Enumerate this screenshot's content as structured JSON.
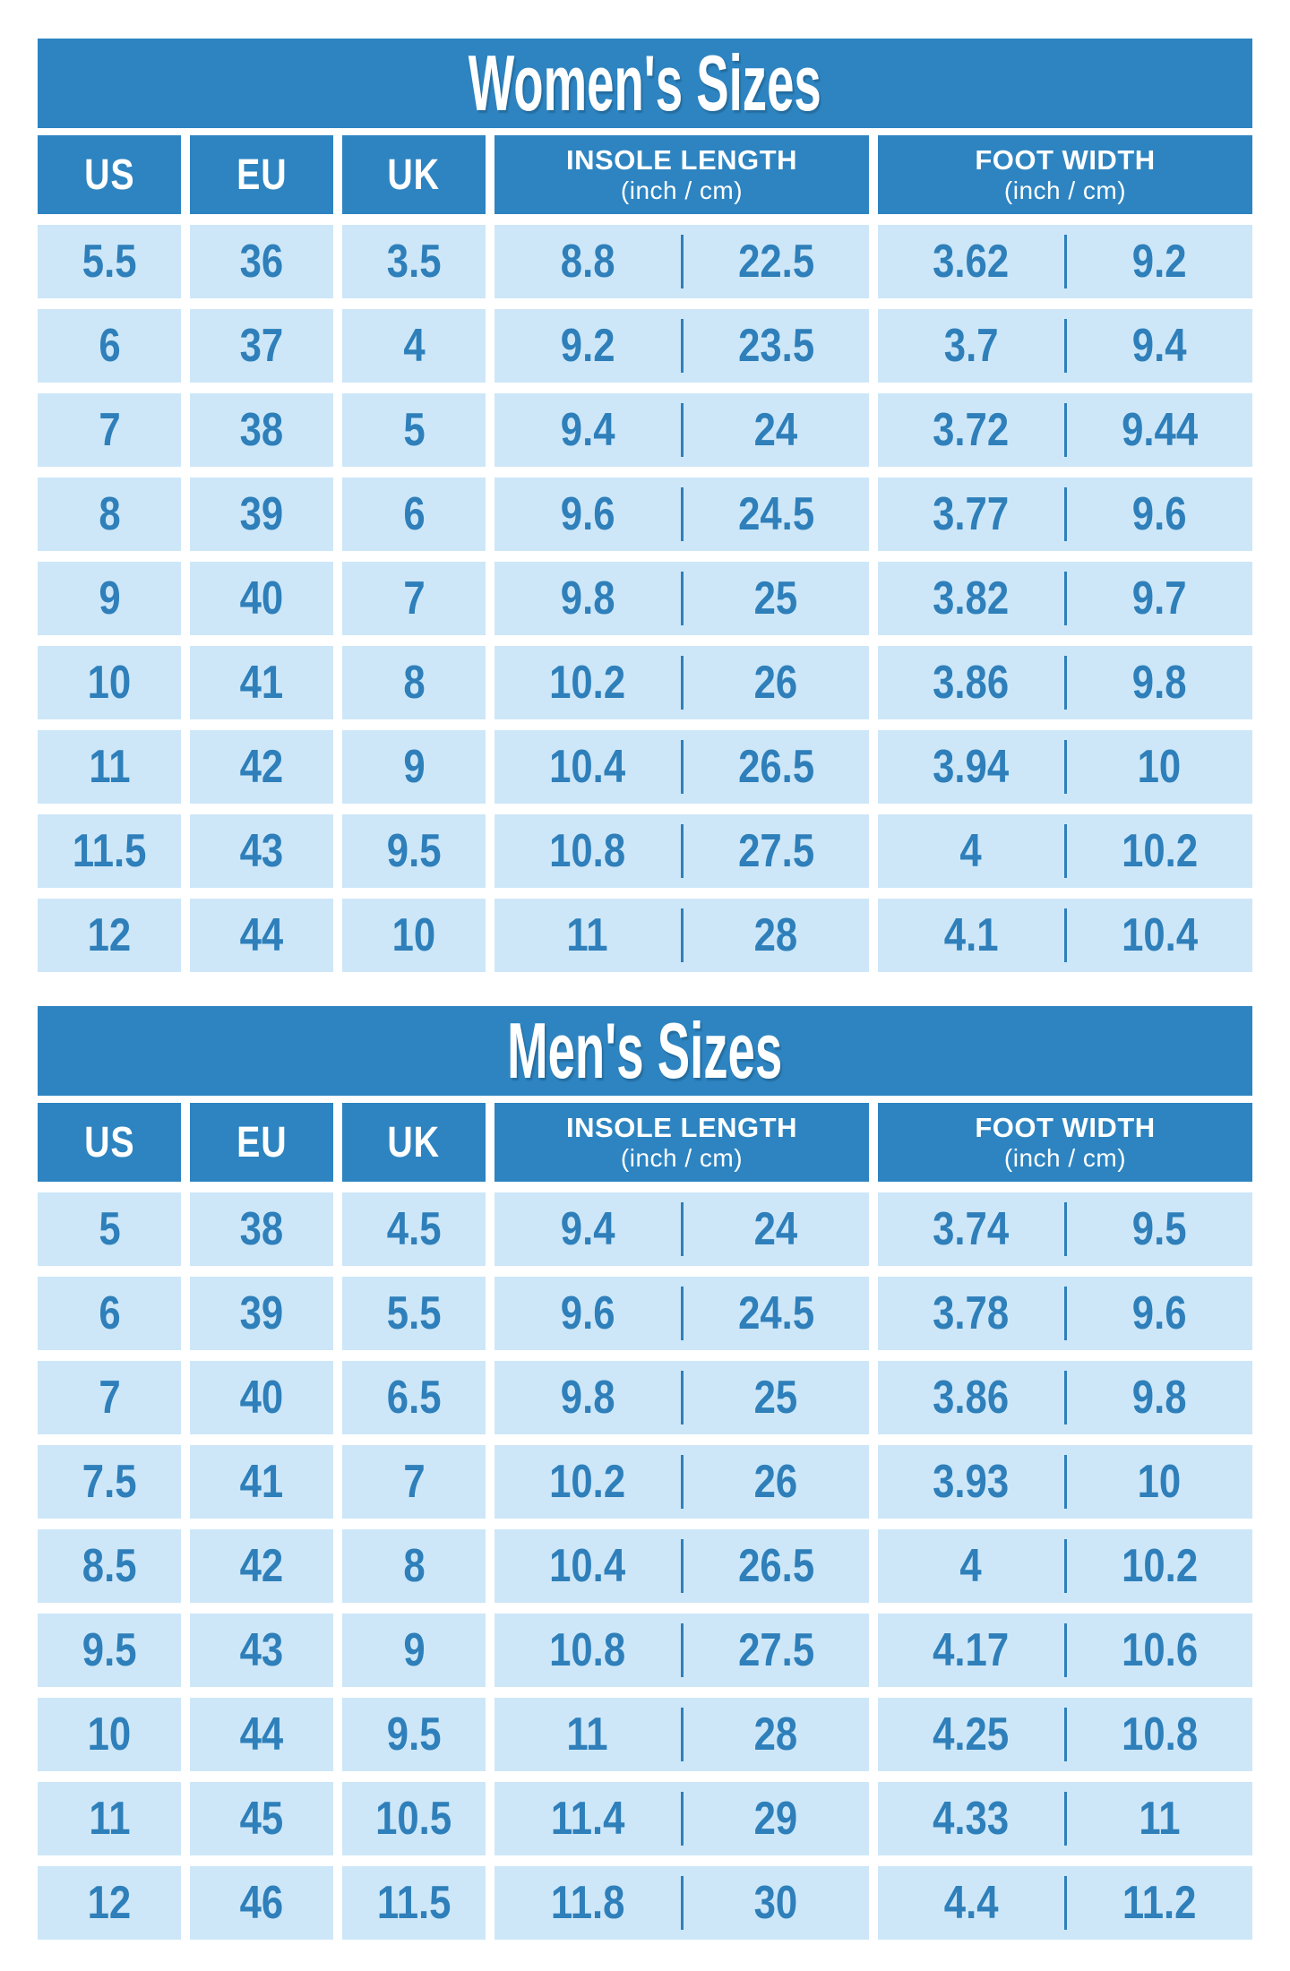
{
  "colors": {
    "primary_blue": "#2d84c1",
    "cell_light_blue": "#cde7f8",
    "number_text_blue": "#2e7fba",
    "background": "#ffffff",
    "title_text": "#ffffff"
  },
  "chart_data": [
    {
      "type": "table",
      "title": "Women's Sizes",
      "headers": [
        {
          "label": "US",
          "sub": ""
        },
        {
          "label": "EU",
          "sub": ""
        },
        {
          "label": "UK",
          "sub": ""
        },
        {
          "label": "INSOLE LENGTH",
          "sub": "(inch / cm)"
        },
        {
          "label": "FOOT WIDTH",
          "sub": "(inch / cm)"
        }
      ],
      "columns": [
        "US",
        "EU",
        "UK",
        "INSOLE LENGTH inch",
        "INSOLE LENGTH cm",
        "FOOT WIDTH inch",
        "FOOT WIDTH cm"
      ],
      "rows": [
        [
          "5.5",
          "36",
          "3.5",
          "8.8",
          "22.5",
          "3.62",
          "9.2"
        ],
        [
          "6",
          "37",
          "4",
          "9.2",
          "23.5",
          "3.7",
          "9.4"
        ],
        [
          "7",
          "38",
          "5",
          "9.4",
          "24",
          "3.72",
          "9.44"
        ],
        [
          "8",
          "39",
          "6",
          "9.6",
          "24.5",
          "3.77",
          "9.6"
        ],
        [
          "9",
          "40",
          "7",
          "9.8",
          "25",
          "3.82",
          "9.7"
        ],
        [
          "10",
          "41",
          "8",
          "10.2",
          "26",
          "3.86",
          "9.8"
        ],
        [
          "11",
          "42",
          "9",
          "10.4",
          "26.5",
          "3.94",
          "10"
        ],
        [
          "11.5",
          "43",
          "9.5",
          "10.8",
          "27.5",
          "4",
          "10.2"
        ],
        [
          "12",
          "44",
          "10",
          "11",
          "28",
          "4.1",
          "10.4"
        ]
      ]
    },
    {
      "type": "table",
      "title": "Men's Sizes",
      "headers": [
        {
          "label": "US",
          "sub": ""
        },
        {
          "label": "EU",
          "sub": ""
        },
        {
          "label": "UK",
          "sub": ""
        },
        {
          "label": "INSOLE LENGTH",
          "sub": "(inch / cm)"
        },
        {
          "label": "FOOT WIDTH",
          "sub": "(inch / cm)"
        }
      ],
      "columns": [
        "US",
        "EU",
        "UK",
        "INSOLE LENGTH inch",
        "INSOLE LENGTH cm",
        "FOOT WIDTH inch",
        "FOOT WIDTH cm"
      ],
      "rows": [
        [
          "5",
          "38",
          "4.5",
          "9.4",
          "24",
          "3.74",
          "9.5"
        ],
        [
          "6",
          "39",
          "5.5",
          "9.6",
          "24.5",
          "3.78",
          "9.6"
        ],
        [
          "7",
          "40",
          "6.5",
          "9.8",
          "25",
          "3.86",
          "9.8"
        ],
        [
          "7.5",
          "41",
          "7",
          "10.2",
          "26",
          "3.93",
          "10"
        ],
        [
          "8.5",
          "42",
          "8",
          "10.4",
          "26.5",
          "4",
          "10.2"
        ],
        [
          "9.5",
          "43",
          "9",
          "10.8",
          "27.5",
          "4.17",
          "10.6"
        ],
        [
          "10",
          "44",
          "9.5",
          "11",
          "28",
          "4.25",
          "10.8"
        ],
        [
          "11",
          "45",
          "10.5",
          "11.4",
          "29",
          "4.33",
          "11"
        ],
        [
          "12",
          "46",
          "11.5",
          "11.8",
          "30",
          "4.4",
          "11.2"
        ]
      ]
    }
  ]
}
